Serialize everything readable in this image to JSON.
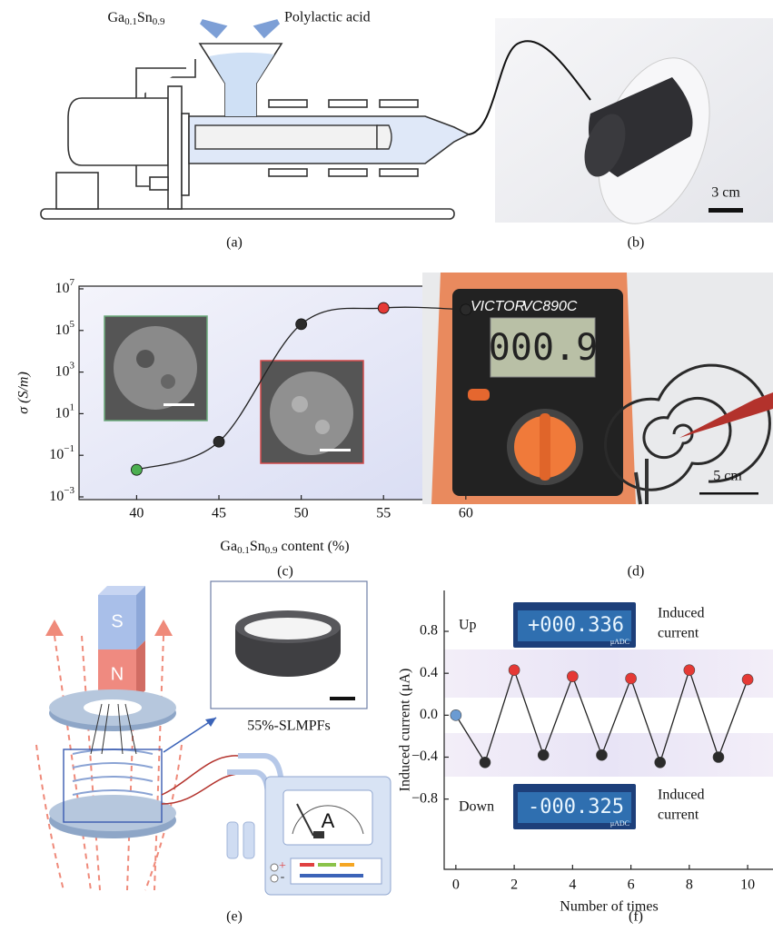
{
  "figure": {
    "a": {
      "label": "(a)",
      "alloy": [
        "Ga",
        "0.1",
        "Sn",
        "0.9"
      ],
      "polymer": "Polylactic acid"
    },
    "b": {
      "label": "(b)",
      "scale": "3 cm"
    },
    "c": {
      "label": "(c)"
    },
    "d": {
      "label": "(d)",
      "scale": "5 cm",
      "brand": "VICTOR",
      "model": "VC890C",
      "reading": "000.9"
    },
    "e": {
      "label": "(e)",
      "sample": "55%-SLMPFs",
      "magnet_s": "S",
      "magnet_n": "N",
      "meter": "A",
      "plus": "+",
      "minus": "-"
    },
    "f": {
      "label": "(f)"
    }
  },
  "chart_data": [
    {
      "type": "scatter",
      "ylabel": "σ (S/m)",
      "xlabel": [
        "Ga",
        "0.1",
        "Sn",
        "0.9",
        " content (%)"
      ],
      "x": [
        40,
        45,
        50,
        55,
        60
      ],
      "values": [
        0.02,
        0.45,
        200000,
        1200000,
        1000000
      ],
      "colors": [
        "#4caf50",
        "#2b2b2b",
        "#2b2b2b",
        "#e53935",
        "#2b2b2b"
      ],
      "xlim": [
        36.5,
        61.5
      ],
      "xticks": [
        40,
        45,
        50,
        55,
        60
      ],
      "log_y": true,
      "ylim": [
        0.00074,
        13500000
      ],
      "yticks": [
        {
          "value": 0.001,
          "label": "10",
          "exponent": "−3"
        },
        {
          "value": 0.1,
          "label": "10",
          "exponent": "−1"
        },
        {
          "value": 10,
          "label": "10",
          "exponent": "1"
        },
        {
          "value": 1000,
          "label": "10",
          "exponent": "3"
        },
        {
          "value": 100000,
          "label": "10",
          "exponent": "5"
        },
        {
          "value": 10000000,
          "label": "10",
          "exponent": "7"
        }
      ]
    },
    {
      "type": "line",
      "ylabel": "Induced current (μA)",
      "xlabel": "Number of times",
      "x": [
        0,
        1,
        2,
        3,
        4,
        5,
        6,
        7,
        8,
        9,
        10
      ],
      "values": [
        0,
        -0.45,
        0.43,
        -0.38,
        0.37,
        -0.38,
        0.35,
        -0.45,
        0.43,
        -0.4,
        0.34
      ],
      "colors": [
        "#6b9bd2",
        "#2b2b2b",
        "#e53935",
        "#2b2b2b",
        "#e53935",
        "#2b2b2b",
        "#e53935",
        "#2b2b2b",
        "#e53935",
        "#2b2b2b",
        "#e53935"
      ],
      "xlim": [
        -0.4,
        10.9
      ],
      "xticks": [
        0,
        2,
        4,
        6,
        8,
        10
      ],
      "ylim": [
        -1.47,
        1.19
      ],
      "yticks": [
        0.8,
        0.4,
        {
          "value": 0,
          "label": "0.0"
        },
        {
          "value": -0.4,
          "label": "−0.4"
        },
        {
          "value": -0.8,
          "label": "−0.8"
        }
      ],
      "annotations": {
        "up": "Up",
        "down": "Down",
        "up_note": [
          "Induced",
          "current"
        ],
        "down_note": [
          "Induced",
          "current"
        ],
        "up_reading": "+000.336",
        "down_reading": "-000.325",
        "unit": "μADC"
      }
    }
  ]
}
